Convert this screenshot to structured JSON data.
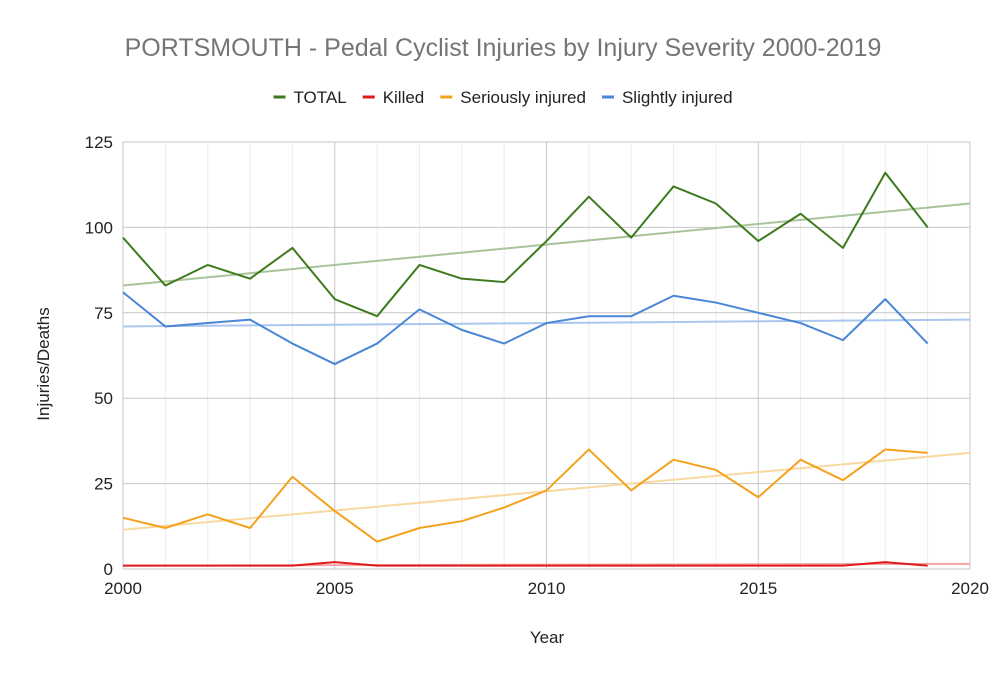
{
  "chart_data": {
    "type": "line",
    "title": "PORTSMOUTH - Pedal Cyclist Injuries by Injury Severity 2000-2019",
    "xlabel": "Year",
    "ylabel": "Injuries/Deaths",
    "xlim": [
      2000,
      2020
    ],
    "ylim": [
      0,
      125
    ],
    "x_ticks": [
      "2000",
      "2005",
      "2010",
      "2015",
      "2020"
    ],
    "y_ticks": [
      "0",
      "25",
      "50",
      "75",
      "100",
      "125"
    ],
    "grid": true,
    "legend_position": "top",
    "x": [
      2000,
      2001,
      2002,
      2003,
      2004,
      2005,
      2006,
      2007,
      2008,
      2009,
      2010,
      2011,
      2012,
      2013,
      2014,
      2015,
      2016,
      2017,
      2018,
      2019
    ],
    "series": [
      {
        "name": "TOTAL",
        "color": "#3e7a1d",
        "trend_color": "#a8c49b",
        "values": [
          97,
          83,
          89,
          85,
          94,
          79,
          74,
          89,
          85,
          84,
          96,
          109,
          97,
          112,
          107,
          96,
          104,
          94,
          116,
          100
        ],
        "trend": [
          83,
          107
        ]
      },
      {
        "name": "Killed",
        "color": "#e01b1b",
        "trend_color": "#f4a5a5",
        "values": [
          1,
          1,
          1,
          1,
          1,
          2,
          1,
          1,
          1,
          1,
          1,
          1,
          1,
          1,
          1,
          1,
          1,
          1,
          2,
          1
        ],
        "trend": [
          1,
          1.5
        ]
      },
      {
        "name": "Seriously injured",
        "color": "#f4a21d",
        "trend_color": "#f9d9a0",
        "values": [
          15,
          12,
          16,
          12,
          27,
          17,
          8,
          12,
          14,
          18,
          23,
          35,
          23,
          32,
          29,
          21,
          32,
          26,
          35,
          34
        ],
        "trend": [
          11.5,
          34
        ]
      },
      {
        "name": "Slightly injured",
        "color": "#4a86d6",
        "trend_color": "#a9c7ef",
        "values": [
          81,
          71,
          72,
          73,
          66,
          60,
          66,
          76,
          70,
          66,
          72,
          74,
          74,
          80,
          78,
          75,
          72,
          67,
          79,
          66
        ],
        "trend": [
          71,
          73
        ]
      }
    ]
  }
}
